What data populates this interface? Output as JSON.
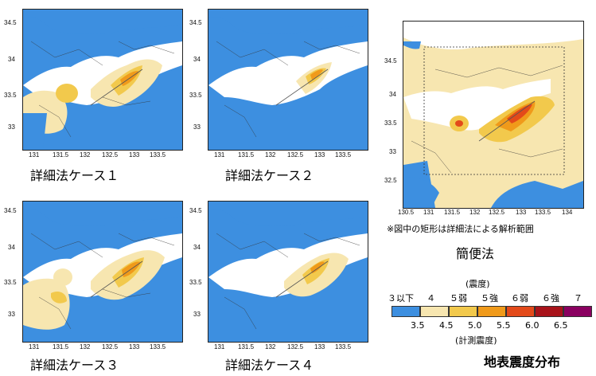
{
  "maps": [
    {
      "id": "case1",
      "caption": "詳細法ケース１",
      "y_ticks": [
        "34.5",
        "34",
        "33.5",
        "33"
      ],
      "x_ticks": [
        "131",
        "131.5",
        "132",
        "132.5",
        "133",
        "133.5"
      ]
    },
    {
      "id": "case2",
      "caption": "詳細法ケース２",
      "y_ticks": [
        "34.5",
        "34",
        "33.5",
        "33"
      ],
      "x_ticks": [
        "131",
        "131.5",
        "132",
        "132.5",
        "133",
        "133.5"
      ]
    },
    {
      "id": "case3",
      "caption": "詳細法ケース３",
      "y_ticks": [
        "34.5",
        "34",
        "33.5",
        "33"
      ],
      "x_ticks": [
        "131",
        "131.5",
        "132",
        "132.5",
        "133",
        "133.5"
      ]
    },
    {
      "id": "case4",
      "caption": "詳細法ケース４",
      "y_ticks": [
        "34.5",
        "34",
        "33.5",
        "33"
      ],
      "x_ticks": [
        "131",
        "131.5",
        "132",
        "132.5",
        "133",
        "133.5"
      ]
    },
    {
      "id": "simple",
      "caption": "簡便法",
      "y_ticks": [
        "34.5",
        "34",
        "33.5",
        "33",
        "32.5"
      ],
      "x_ticks": [
        "130.5",
        "131",
        "131.5",
        "132",
        "132.5",
        "133",
        "133.5",
        "134"
      ]
    }
  ],
  "note": "※図中の矩形は詳細法による解析範囲",
  "legend": {
    "top_title": "(震度)",
    "intensity_labels": [
      "３以下",
      "４",
      "５弱",
      "５強",
      "６弱",
      "６強",
      "７"
    ],
    "instrumental_values": [
      "3.5",
      "4.5",
      "5.0",
      "5.5",
      "6.0",
      "6.5"
    ],
    "bottom_title": "(計測震度)",
    "colors": [
      "#3d8fe0",
      "#f7e6b0",
      "#f2c94c",
      "#f09a1a",
      "#e34a1a",
      "#a8131a",
      "#8a0060"
    ]
  },
  "title": "地表震度分布"
}
